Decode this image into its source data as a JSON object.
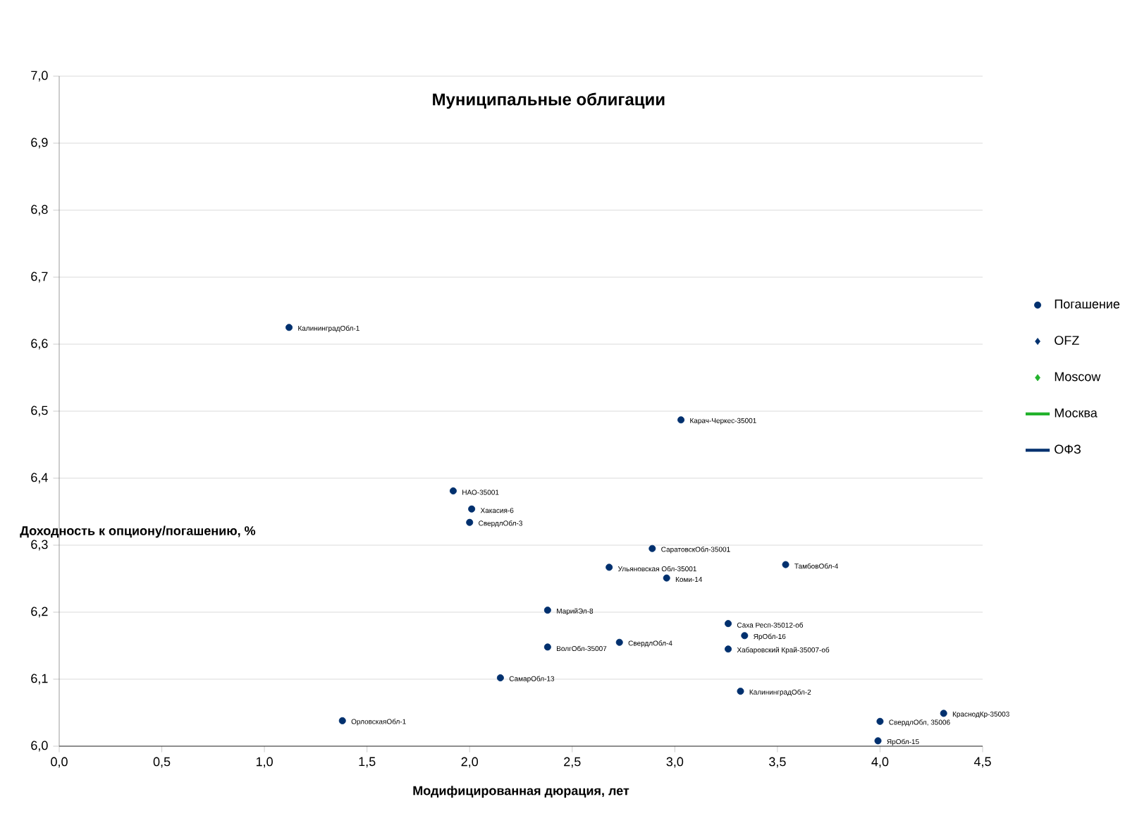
{
  "chart_data": {
    "type": "scatter",
    "title": "Муниципальные облигации",
    "xlabel": "Модифицированная дюрация, лет",
    "ylabel": "Доходность к опциону/погашению, %",
    "xlim": [
      0,
      4.5
    ],
    "xticks": [
      {
        "value": 0,
        "label": "0,0"
      },
      {
        "value": 0.5,
        "label": "0,5"
      },
      {
        "value": 1,
        "label": "1,0"
      },
      {
        "value": 1.5,
        "label": "1,5"
      },
      {
        "value": 2,
        "label": "2,0"
      },
      {
        "value": 2.5,
        "label": "2,5"
      },
      {
        "value": 3,
        "label": "3,0"
      },
      {
        "value": 3.5,
        "label": "3,5"
      },
      {
        "value": 4,
        "label": "4,0"
      },
      {
        "value": 4.5,
        "label": "4,5"
      }
    ],
    "ylim": [
      6.0,
      7.0
    ],
    "yticks": [
      {
        "value": 6.0,
        "label": "6,0"
      },
      {
        "value": 6.1,
        "label": "6,1"
      },
      {
        "value": 6.2,
        "label": "6,2"
      },
      {
        "value": 6.3,
        "label": "6,3"
      },
      {
        "value": 6.4,
        "label": "6,4"
      },
      {
        "value": 6.5,
        "label": "6,5"
      },
      {
        "value": 6.6,
        "label": "6,6"
      },
      {
        "value": 6.7,
        "label": "6,7"
      },
      {
        "value": 6.8,
        "label": "6,8"
      },
      {
        "value": 6.9,
        "label": "6,9"
      },
      {
        "value": 7.0,
        "label": "7,0"
      }
    ],
    "grid": "y",
    "legend": "right",
    "series": [
      {
        "name": "Погашение",
        "color": "#00306e",
        "marker": "circle",
        "x": [
          1.12,
          3.03,
          1.92,
          2.01,
          2.0,
          2.89,
          2.68,
          3.54,
          2.96,
          2.38,
          3.26,
          3.34,
          2.73,
          2.38,
          3.26,
          2.15,
          3.32,
          1.38,
          4.31,
          4.0,
          3.99
        ],
        "values": [
          6.625,
          6.487,
          6.381,
          6.354,
          6.334,
          6.295,
          6.267,
          6.271,
          6.251,
          6.203,
          6.183,
          6.165,
          6.155,
          6.148,
          6.145,
          6.102,
          6.082,
          6.038,
          6.049,
          6.037,
          6.008
        ]
      },
      {
        "name": "OFZ",
        "color": "#00306e",
        "marker": "diamond"
      },
      {
        "name": "Moscow",
        "color": "#22b22c",
        "marker": "diamond"
      },
      {
        "name": "Москва",
        "color": "#22b22c",
        "type": "line",
        "marker": "none"
      },
      {
        "name": "ОФЗ",
        "color": "#00306e",
        "type": "line",
        "marker": "none"
      }
    ],
    "annotations": [
      {
        "text": "КалининградОбл-1",
        "x": 1.12,
        "y": 6.625
      },
      {
        "text": "Карач-Черкес-35001",
        "x": 3.03,
        "y": 6.487
      },
      {
        "text": "НАО-35001",
        "x": 1.92,
        "y": 6.381
      },
      {
        "text": "Хакасия-6",
        "x": 2.01,
        "y": 6.354
      },
      {
        "text": "СвердлОбл-3",
        "x": 2.0,
        "y": 6.334
      },
      {
        "text": "СаратовскОбл-35001",
        "x": 2.89,
        "y": 6.295
      },
      {
        "text": "Ульяновская Обл-35001",
        "x": 2.68,
        "y": 6.267
      },
      {
        "text": "ТамбовОбл-4",
        "x": 3.54,
        "y": 6.271
      },
      {
        "text": "Коми-14",
        "x": 2.96,
        "y": 6.251
      },
      {
        "text": "МарийЭл-8",
        "x": 2.38,
        "y": 6.203
      },
      {
        "text": "Саха Респ-35012-об",
        "x": 3.26,
        "y": 6.183
      },
      {
        "text": "ЯрОбл-16",
        "x": 3.34,
        "y": 6.165
      },
      {
        "text": "СвердлОбл-4",
        "x": 2.73,
        "y": 6.155
      },
      {
        "text": "ВолгОбл-35007",
        "x": 2.38,
        "y": 6.148
      },
      {
        "text": "Хабаровский Край-35007-об",
        "x": 3.26,
        "y": 6.145
      },
      {
        "text": "СамарОбл-13",
        "x": 2.15,
        "y": 6.102
      },
      {
        "text": "КалининградОбл-2",
        "x": 3.32,
        "y": 6.082
      },
      {
        "text": "ОрловскаяОбл-1",
        "x": 1.38,
        "y": 6.038
      },
      {
        "text": "КраснодКр-35003",
        "x": 4.31,
        "y": 6.049
      },
      {
        "text": "СвердлОбл, 35006",
        "x": 4.0,
        "y": 6.037
      },
      {
        "text": "ЯрОбл-15",
        "x": 3.99,
        "y": 6.008
      }
    ]
  }
}
